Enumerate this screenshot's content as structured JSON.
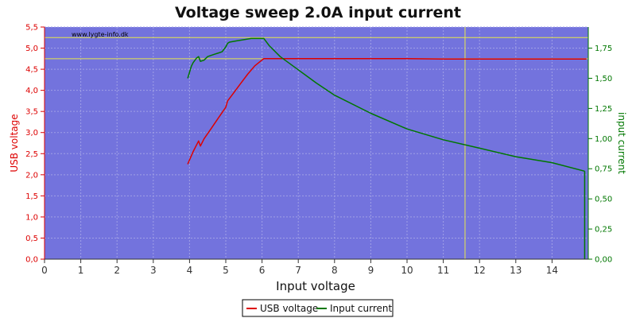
{
  "chart_data": {
    "type": "line",
    "title": "Voltage sweep 2.0A input current",
    "xlabel": "Input voltage",
    "ylabel_left": "USB voltage",
    "ylabel_right": "input current",
    "watermark": "www.lygte-info.dk",
    "xlim": [
      0,
      15
    ],
    "ylim_left": [
      0,
      5.5
    ],
    "ylim_right": [
      0,
      1.925
    ],
    "x_ticks": [
      "0",
      "1",
      "2",
      "3",
      "4",
      "5",
      "6",
      "7",
      "8",
      "9",
      "10",
      "11",
      "12",
      "13",
      "14"
    ],
    "y_left_ticks": [
      "0,0",
      "0,5",
      "1,0",
      "1,5",
      "2,0",
      "2,5",
      "3,0",
      "3,5",
      "4,0",
      "4,5",
      "5,0",
      "5,5"
    ],
    "y_right_ticks": [
      "0,00",
      "0,25",
      "0,50",
      "0,75",
      "1,00",
      "1,25",
      "1,50",
      "1,75"
    ],
    "grid": true,
    "legend_position": "bottom-center",
    "colors": {
      "plot_bg": "#7373dd",
      "grid": "#a0a0e6",
      "usb_voltage": "#dd0000",
      "input_current": "#007700",
      "reference_line": "#e6e64d",
      "left_axis": "#dd0000",
      "right_axis": "#007700"
    },
    "reference_lines": {
      "horizontal_left_axis": [
        5.25,
        4.75
      ],
      "vertical_x": [
        11.6
      ]
    },
    "series": [
      {
        "name": "USB voltage",
        "axis": "left",
        "x": [
          3.95,
          4.1,
          4.25,
          4.3,
          4.4,
          4.6,
          4.8,
          5.0,
          5.05,
          5.2,
          5.4,
          5.6,
          5.8,
          6.0,
          6.05,
          6.5,
          7.0,
          8.0,
          9.0,
          10.0,
          11.0,
          12.0,
          13.0,
          14.0,
          14.95
        ],
        "y": [
          2.25,
          2.55,
          2.8,
          2.68,
          2.85,
          3.1,
          3.35,
          3.6,
          3.75,
          3.92,
          4.15,
          4.38,
          4.58,
          4.72,
          4.75,
          4.75,
          4.75,
          4.75,
          4.75,
          4.75,
          4.74,
          4.74,
          4.74,
          4.74,
          4.74
        ]
      },
      {
        "name": "Input current",
        "axis": "right",
        "x": [
          3.95,
          4.05,
          4.1,
          4.2,
          4.25,
          4.3,
          4.4,
          4.5,
          4.6,
          4.7,
          4.8,
          4.9,
          5.0,
          5.05,
          5.1,
          5.3,
          5.5,
          5.7,
          5.9,
          6.05,
          6.2,
          6.5,
          7.0,
          7.5,
          8.0,
          9.0,
          10.0,
          11.0,
          12.0,
          13.0,
          14.0,
          14.9
        ],
        "y": [
          1.5,
          1.6,
          1.63,
          1.67,
          1.68,
          1.64,
          1.65,
          1.68,
          1.69,
          1.7,
          1.71,
          1.72,
          1.76,
          1.79,
          1.8,
          1.81,
          1.82,
          1.83,
          1.83,
          1.83,
          1.77,
          1.68,
          1.57,
          1.46,
          1.36,
          1.21,
          1.08,
          0.99,
          0.92,
          0.85,
          0.8,
          0.73
        ]
      }
    ]
  }
}
